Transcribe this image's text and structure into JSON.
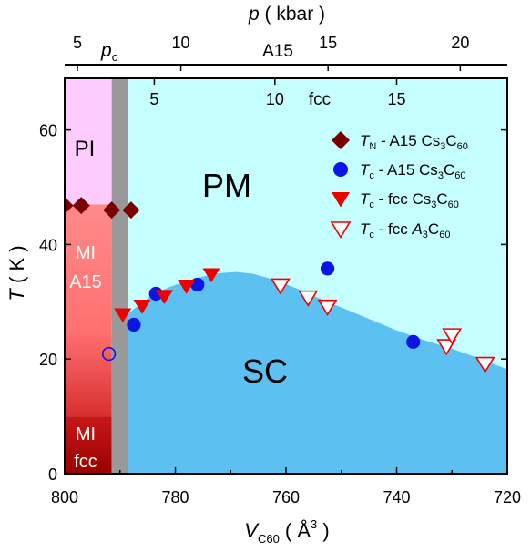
{
  "chart_data": {
    "type": "scatter",
    "title": "",
    "xlabel": {
      "main": "V",
      "sub": "C60",
      "unit_open": "( Å",
      "unit_sup": "3",
      "unit_close": " )"
    },
    "ylabel": {
      "main": "T",
      "unit": " ( K )"
    },
    "top_label": {
      "main": "p",
      "unit": " ( kbar )"
    },
    "xlim": [
      800,
      720
    ],
    "ylim": [
      0,
      69
    ],
    "x_ticks": [
      800,
      780,
      760,
      740,
      720
    ],
    "x_tick_labels": [
      "800",
      "780",
      "760",
      "740",
      "720"
    ],
    "y_ticks": [
      0,
      20,
      40,
      60
    ],
    "y_tick_labels": [
      "0",
      "20",
      "40",
      "60"
    ],
    "top_axis_A15": {
      "label": "A15",
      "ticks": [
        {
          "label": "5",
          "x": 797.7
        },
        {
          "label": "10",
          "x": 779.0
        },
        {
          "label": "15",
          "x": 752.4
        },
        {
          "label": "20",
          "x": 728.5
        }
      ],
      "pc_label": {
        "main": "p",
        "sub": "c",
        "x": 790.6
      }
    },
    "inner_axis_fcc": {
      "label": "fcc",
      "ticks": [
        {
          "label": "5",
          "x": 783.8
        },
        {
          "label": "10",
          "x": 762.0
        },
        {
          "label": "15",
          "x": 740.0
        }
      ]
    },
    "phase_labels": {
      "PI": "PI",
      "PM": "PM",
      "SC": "SC",
      "MI_A15": [
        "MI",
        "A15"
      ],
      "MI_fcc": [
        "MI",
        "fcc"
      ]
    },
    "regions": {
      "PI": {
        "x": [
          800,
          791.5
        ],
        "y": [
          47,
          69
        ],
        "color": "#ffccff"
      },
      "PM": {
        "x": [
          788.5,
          720
        ],
        "y": [
          0,
          69
        ],
        "color": "#c5ffff"
      },
      "MI_A15": {
        "x": [
          800,
          791.5
        ],
        "y": [
          10,
          47
        ],
        "color": "#ff8080"
      },
      "MI_fcc": {
        "x": [
          800,
          791.5
        ],
        "y": [
          0,
          10
        ],
        "color": "#b00000"
      },
      "pc_band": {
        "x": [
          791.5,
          788.5
        ],
        "y": [
          0,
          69
        ],
        "color": "#999999"
      },
      "SC_dome": {
        "color": "#5cc0f0",
        "boundary": [
          [
            788.5,
            28
          ],
          [
            786,
            29.8
          ],
          [
            784,
            31.3
          ],
          [
            781,
            32.6
          ],
          [
            778,
            33.6
          ],
          [
            775,
            34.4
          ],
          [
            772,
            35.0
          ],
          [
            769,
            35.2
          ],
          [
            766,
            34.9
          ],
          [
            762,
            33.8
          ],
          [
            758,
            32.3
          ],
          [
            754,
            30.6
          ],
          [
            750,
            29.0
          ],
          [
            745,
            27.0
          ],
          [
            740,
            25.0
          ],
          [
            735,
            23.3
          ],
          [
            730,
            21.8
          ],
          [
            725,
            20.1
          ],
          [
            720,
            18.2
          ]
        ]
      }
    },
    "series": [
      {
        "name": "TN - A15 Cs3C60",
        "legend": {
          "sym": "T",
          "sym_sub": "N",
          "text": " - A15 Cs",
          "parts": [
            [
              "3",
              "sub"
            ],
            [
              "C",
              "n"
            ],
            [
              "60",
              "sub"
            ]
          ]
        },
        "marker": "diamond",
        "color": "#7a0000",
        "x": [
          800,
          797,
          791.5,
          788
        ],
        "y": [
          46.8,
          46.8,
          46,
          46
        ]
      },
      {
        "name": "Tc - A15 Cs3C60",
        "legend": {
          "sym": "T",
          "sym_sub": "c",
          "text": " - A15 Cs",
          "parts": [
            [
              "3",
              "sub"
            ],
            [
              "C",
              "n"
            ],
            [
              "60",
              "sub"
            ]
          ]
        },
        "marker": "circle",
        "color": "#0b16e6",
        "x": [
          787.5,
          783.5,
          776,
          752.5,
          737
        ],
        "y": [
          26,
          31.4,
          33,
          35.8,
          23
        ]
      },
      {
        "name": "Tc - A15 Cs3C60 (open)",
        "legend": null,
        "marker": "circle-open",
        "color": "#0b16e6",
        "x": [
          792
        ],
        "y": [
          20.9
        ]
      },
      {
        "name": "Tc - fcc Cs3C60",
        "legend": {
          "sym": "T",
          "sym_sub": "c",
          "text": " - fcc   Cs",
          "parts": [
            [
              "3",
              "sub"
            ],
            [
              "C",
              "n"
            ],
            [
              "60",
              "sub"
            ]
          ]
        },
        "marker": "triangle-down",
        "color": "#ee0000",
        "x": [
          789.5,
          786,
          782,
          778,
          773.5
        ],
        "y": [
          27.8,
          29.3,
          31.0,
          32.8,
          34.8
        ]
      },
      {
        "name": "Tc - fcc A3C60",
        "legend": {
          "sym": "T",
          "sym_sub": "c",
          "text": " - fcc  ",
          "parts": [
            [
              "A",
              "it"
            ],
            [
              "3",
              "sub"
            ],
            [
              "C",
              "n"
            ],
            [
              "60",
              "sub"
            ]
          ]
        },
        "marker": "triangle-down-open",
        "color": "#ee0000",
        "x": [
          761,
          756,
          752.5,
          731,
          730,
          724
        ],
        "y": [
          32.9,
          30.8,
          29.2,
          22.3,
          24.2,
          19.2
        ]
      }
    ]
  }
}
